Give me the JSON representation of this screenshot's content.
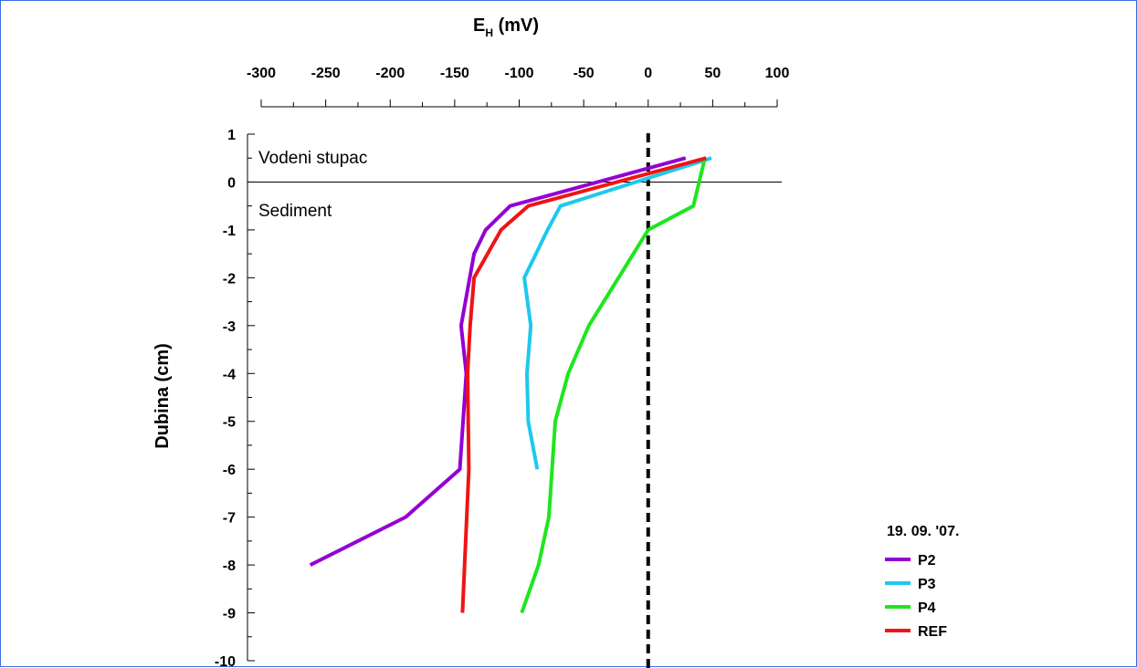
{
  "chart_data": {
    "type": "line",
    "title": "",
    "xlabel": "E",
    "xlabel_sub": "H",
    "xlabel_unit": " (mV)",
    "ylabel": "Dubina (cm)",
    "xlim": [
      -300,
      100
    ],
    "ylim": [
      -10,
      1
    ],
    "x_ticks": [
      -300,
      -250,
      -200,
      -150,
      -100,
      -50,
      0,
      50,
      100
    ],
    "y_ticks": [
      1,
      0,
      -1,
      -2,
      -3,
      -4,
      -5,
      -6,
      -7,
      -8,
      -9,
      -10
    ],
    "x_axis_position": "top",
    "grid": false,
    "legend_title": "19. 09. '07.",
    "legend_position": "bottom-right",
    "annotations": {
      "water_column": "Vodeni stupac",
      "sediment": "Sediment"
    },
    "reference_lines": [
      {
        "orientation": "horizontal",
        "y": 0,
        "style": "solid",
        "color": "#000000"
      },
      {
        "orientation": "vertical",
        "x": 0,
        "style": "dashed",
        "color": "#000000"
      }
    ],
    "series": [
      {
        "name": "P2",
        "color": "#9400d3",
        "points": [
          [
            29,
            0.5
          ],
          [
            -107,
            -0.5
          ],
          [
            -126,
            -1
          ],
          [
            -135,
            -1.5
          ],
          [
            -145,
            -3
          ],
          [
            -141,
            -4
          ],
          [
            -146,
            -6
          ],
          [
            -188,
            -7
          ],
          [
            -262,
            -8
          ]
        ]
      },
      {
        "name": "P3",
        "color": "#1ec8f0",
        "points": [
          [
            49,
            0.5
          ],
          [
            -68,
            -0.5
          ],
          [
            -78,
            -1
          ],
          [
            -96,
            -2
          ],
          [
            -91,
            -3
          ],
          [
            -94,
            -4
          ],
          [
            -93,
            -5
          ],
          [
            -86,
            -6
          ]
        ]
      },
      {
        "name": "P4",
        "color": "#1ee61e",
        "points": [
          [
            44,
            0.5
          ],
          [
            35,
            -0.5
          ],
          [
            0,
            -1
          ],
          [
            -46,
            -3
          ],
          [
            -62,
            -4
          ],
          [
            -72,
            -5
          ],
          [
            -77,
            -7
          ],
          [
            -85,
            -8
          ],
          [
            -98,
            -9
          ]
        ]
      },
      {
        "name": "REF",
        "color": "#f01414",
        "points": [
          [
            45,
            0.5
          ],
          [
            -93,
            -0.5
          ],
          [
            -114,
            -1
          ],
          [
            -135,
            -2
          ],
          [
            -138,
            -3
          ],
          [
            -140,
            -4
          ],
          [
            -139,
            -6
          ],
          [
            -144,
            -9
          ]
        ]
      }
    ]
  }
}
